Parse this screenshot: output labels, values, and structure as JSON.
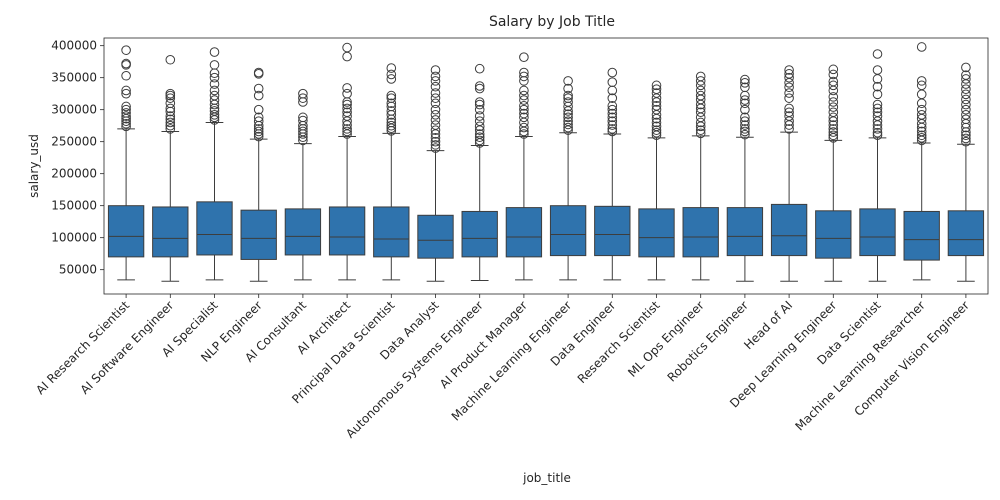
{
  "chart_data": {
    "type": "boxplot",
    "title": "Salary by Job Title",
    "xlabel": "job_title",
    "ylabel": "salary_usd",
    "ylim": [
      12000,
      412000
    ],
    "yticks": [
      50000,
      100000,
      150000,
      200000,
      250000,
      300000,
      350000,
      400000
    ],
    "ytick_labels": [
      "50000",
      "100000",
      "150000",
      "200000",
      "250000",
      "300000",
      "350000",
      "400000"
    ],
    "box_color": "#2f73ad",
    "edge_color": "#3d3d3d",
    "categories": [
      "AI Research Scientist",
      "AI Software Engineer",
      "AI Specialist",
      "NLP Engineer",
      "AI Consultant",
      "AI Architect",
      "Principal Data Scientist",
      "Data Analyst",
      "Autonomous Systems Engineer",
      "AI Product Manager",
      "Machine Learning Engineer",
      "Data Engineer",
      "Research Scientist",
      "ML Ops Engineer",
      "Robotics Engineer",
      "Head of AI",
      "Deep Learning Engineer",
      "Data Scientist",
      "Machine Learning Researcher",
      "Computer Vision Engineer"
    ],
    "boxes": [
      {
        "whislo": 34000,
        "q1": 70000,
        "med": 102000,
        "q3": 150000,
        "whishi": 270000,
        "fliers": [
          274000,
          278000,
          282000,
          286000,
          290000,
          295000,
          300000,
          305000,
          325000,
          330000,
          353000,
          370000,
          372000,
          393000
        ]
      },
      {
        "whislo": 32000,
        "q1": 70000,
        "med": 99000,
        "q3": 148000,
        "whishi": 266000,
        "fliers": [
          270000,
          275000,
          280000,
          285000,
          290000,
          297000,
          302000,
          310000,
          318000,
          322000,
          325000,
          378000
        ]
      },
      {
        "whislo": 34000,
        "q1": 73000,
        "med": 105000,
        "q3": 156000,
        "whishi": 280000,
        "fliers": [
          284000,
          288000,
          292000,
          298000,
          302000,
          308000,
          315000,
          322000,
          330000,
          340000,
          350000,
          357000,
          370000,
          390000
        ]
      },
      {
        "whislo": 32000,
        "q1": 66000,
        "med": 99000,
        "q3": 143000,
        "whishi": 254000,
        "fliers": [
          258000,
          262000,
          266000,
          270000,
          275000,
          282000,
          288000,
          300000,
          322000,
          333000,
          356000,
          358000
        ]
      },
      {
        "whislo": 34000,
        "q1": 73000,
        "med": 102000,
        "q3": 145000,
        "whishi": 247000,
        "fliers": [
          252000,
          257000,
          262000,
          266000,
          270000,
          275000,
          283000,
          288000,
          312000,
          318000,
          325000
        ]
      },
      {
        "whislo": 34000,
        "q1": 73000,
        "med": 101000,
        "q3": 148000,
        "whishi": 258000,
        "fliers": [
          262000,
          266000,
          270000,
          276000,
          282000,
          290000,
          296000,
          302000,
          308000,
          312000,
          325000,
          334000,
          383000,
          397000
        ]
      },
      {
        "whislo": 34000,
        "q1": 70000,
        "med": 98000,
        "q3": 148000,
        "whishi": 263000,
        "fliers": [
          267000,
          271000,
          275000,
          280000,
          285000,
          292000,
          298000,
          305000,
          310000,
          318000,
          322000,
          348000,
          355000,
          365000
        ]
      },
      {
        "whislo": 32000,
        "q1": 68000,
        "med": 96000,
        "q3": 135000,
        "whishi": 236000,
        "fliers": [
          240000,
          245000,
          250000,
          256000,
          262000,
          268000,
          276000,
          284000,
          292000,
          300000,
          310000,
          318000,
          326000,
          336000,
          345000,
          352000,
          362000
        ]
      },
      {
        "whislo": 33000,
        "q1": 70000,
        "med": 99000,
        "q3": 141000,
        "whishi": 244000,
        "fliers": [
          248000,
          252000,
          257000,
          262000,
          268000,
          274000,
          282000,
          290000,
          300000,
          308000,
          312000,
          333000,
          337000,
          364000
        ]
      },
      {
        "whislo": 34000,
        "q1": 70000,
        "med": 101000,
        "q3": 147000,
        "whishi": 258000,
        "fliers": [
          262000,
          266000,
          272000,
          280000,
          288000,
          294000,
          300000,
          306000,
          315000,
          322000,
          330000,
          345000,
          352000,
          358000,
          382000
        ]
      },
      {
        "whislo": 34000,
        "q1": 72000,
        "med": 105000,
        "q3": 150000,
        "whishi": 264000,
        "fliers": [
          268000,
          272000,
          277000,
          282000,
          288000,
          293000,
          298000,
          305000,
          312000,
          318000,
          322000,
          333000,
          345000
        ]
      },
      {
        "whislo": 34000,
        "q1": 72000,
        "med": 105000,
        "q3": 149000,
        "whishi": 262000,
        "fliers": [
          266000,
          270000,
          276000,
          282000,
          288000,
          294000,
          300000,
          306000,
          318000,
          330000,
          343000,
          358000
        ]
      },
      {
        "whislo": 34000,
        "q1": 70000,
        "med": 100000,
        "q3": 145000,
        "whishi": 256000,
        "fliers": [
          260000,
          264000,
          268000,
          274000,
          280000,
          286000,
          292000,
          300000,
          306000,
          312000,
          318000,
          326000,
          332000,
          338000
        ]
      },
      {
        "whislo": 34000,
        "q1": 70000,
        "med": 101000,
        "q3": 147000,
        "whishi": 259000,
        "fliers": [
          263000,
          268000,
          274000,
          280000,
          288000,
          296000,
          302000,
          308000,
          316000,
          322000,
          330000,
          338000,
          345000,
          352000
        ]
      },
      {
        "whislo": 32000,
        "q1": 72000,
        "med": 102000,
        "q3": 147000,
        "whishi": 257000,
        "fliers": [
          261000,
          266000,
          270000,
          276000,
          282000,
          288000,
          300000,
          310000,
          315000,
          322000,
          335000,
          342000,
          347000
        ]
      },
      {
        "whislo": 32000,
        "q1": 72000,
        "med": 103000,
        "q3": 152000,
        "whishi": 265000,
        "fliers": [
          270000,
          276000,
          282000,
          290000,
          296000,
          302000,
          318000,
          326000,
          335000,
          342000,
          350000,
          356000,
          362000
        ]
      },
      {
        "whislo": 32000,
        "q1": 68000,
        "med": 99000,
        "q3": 142000,
        "whishi": 252000,
        "fliers": [
          256000,
          260000,
          265000,
          270000,
          276000,
          282000,
          288000,
          296000,
          304000,
          312000,
          320000,
          330000,
          338000,
          344000,
          355000,
          363000
        ]
      },
      {
        "whislo": 32000,
        "q1": 72000,
        "med": 101000,
        "q3": 145000,
        "whishi": 256000,
        "fliers": [
          260000,
          264000,
          270000,
          276000,
          282000,
          290000,
          296000,
          302000,
          308000,
          324000,
          336000,
          348000,
          362000,
          387000
        ]
      },
      {
        "whislo": 34000,
        "q1": 65000,
        "med": 97000,
        "q3": 141000,
        "whishi": 248000,
        "fliers": [
          252000,
          256000,
          260000,
          266000,
          272000,
          278000,
          286000,
          292000,
          300000,
          310000,
          324000,
          338000,
          345000,
          398000
        ]
      },
      {
        "whislo": 32000,
        "q1": 72000,
        "med": 97000,
        "q3": 142000,
        "whishi": 246000,
        "fliers": [
          250000,
          255000,
          260000,
          265000,
          272000,
          278000,
          285000,
          292000,
          300000,
          308000,
          316000,
          324000,
          332000,
          340000,
          348000,
          354000,
          366000
        ]
      }
    ]
  }
}
